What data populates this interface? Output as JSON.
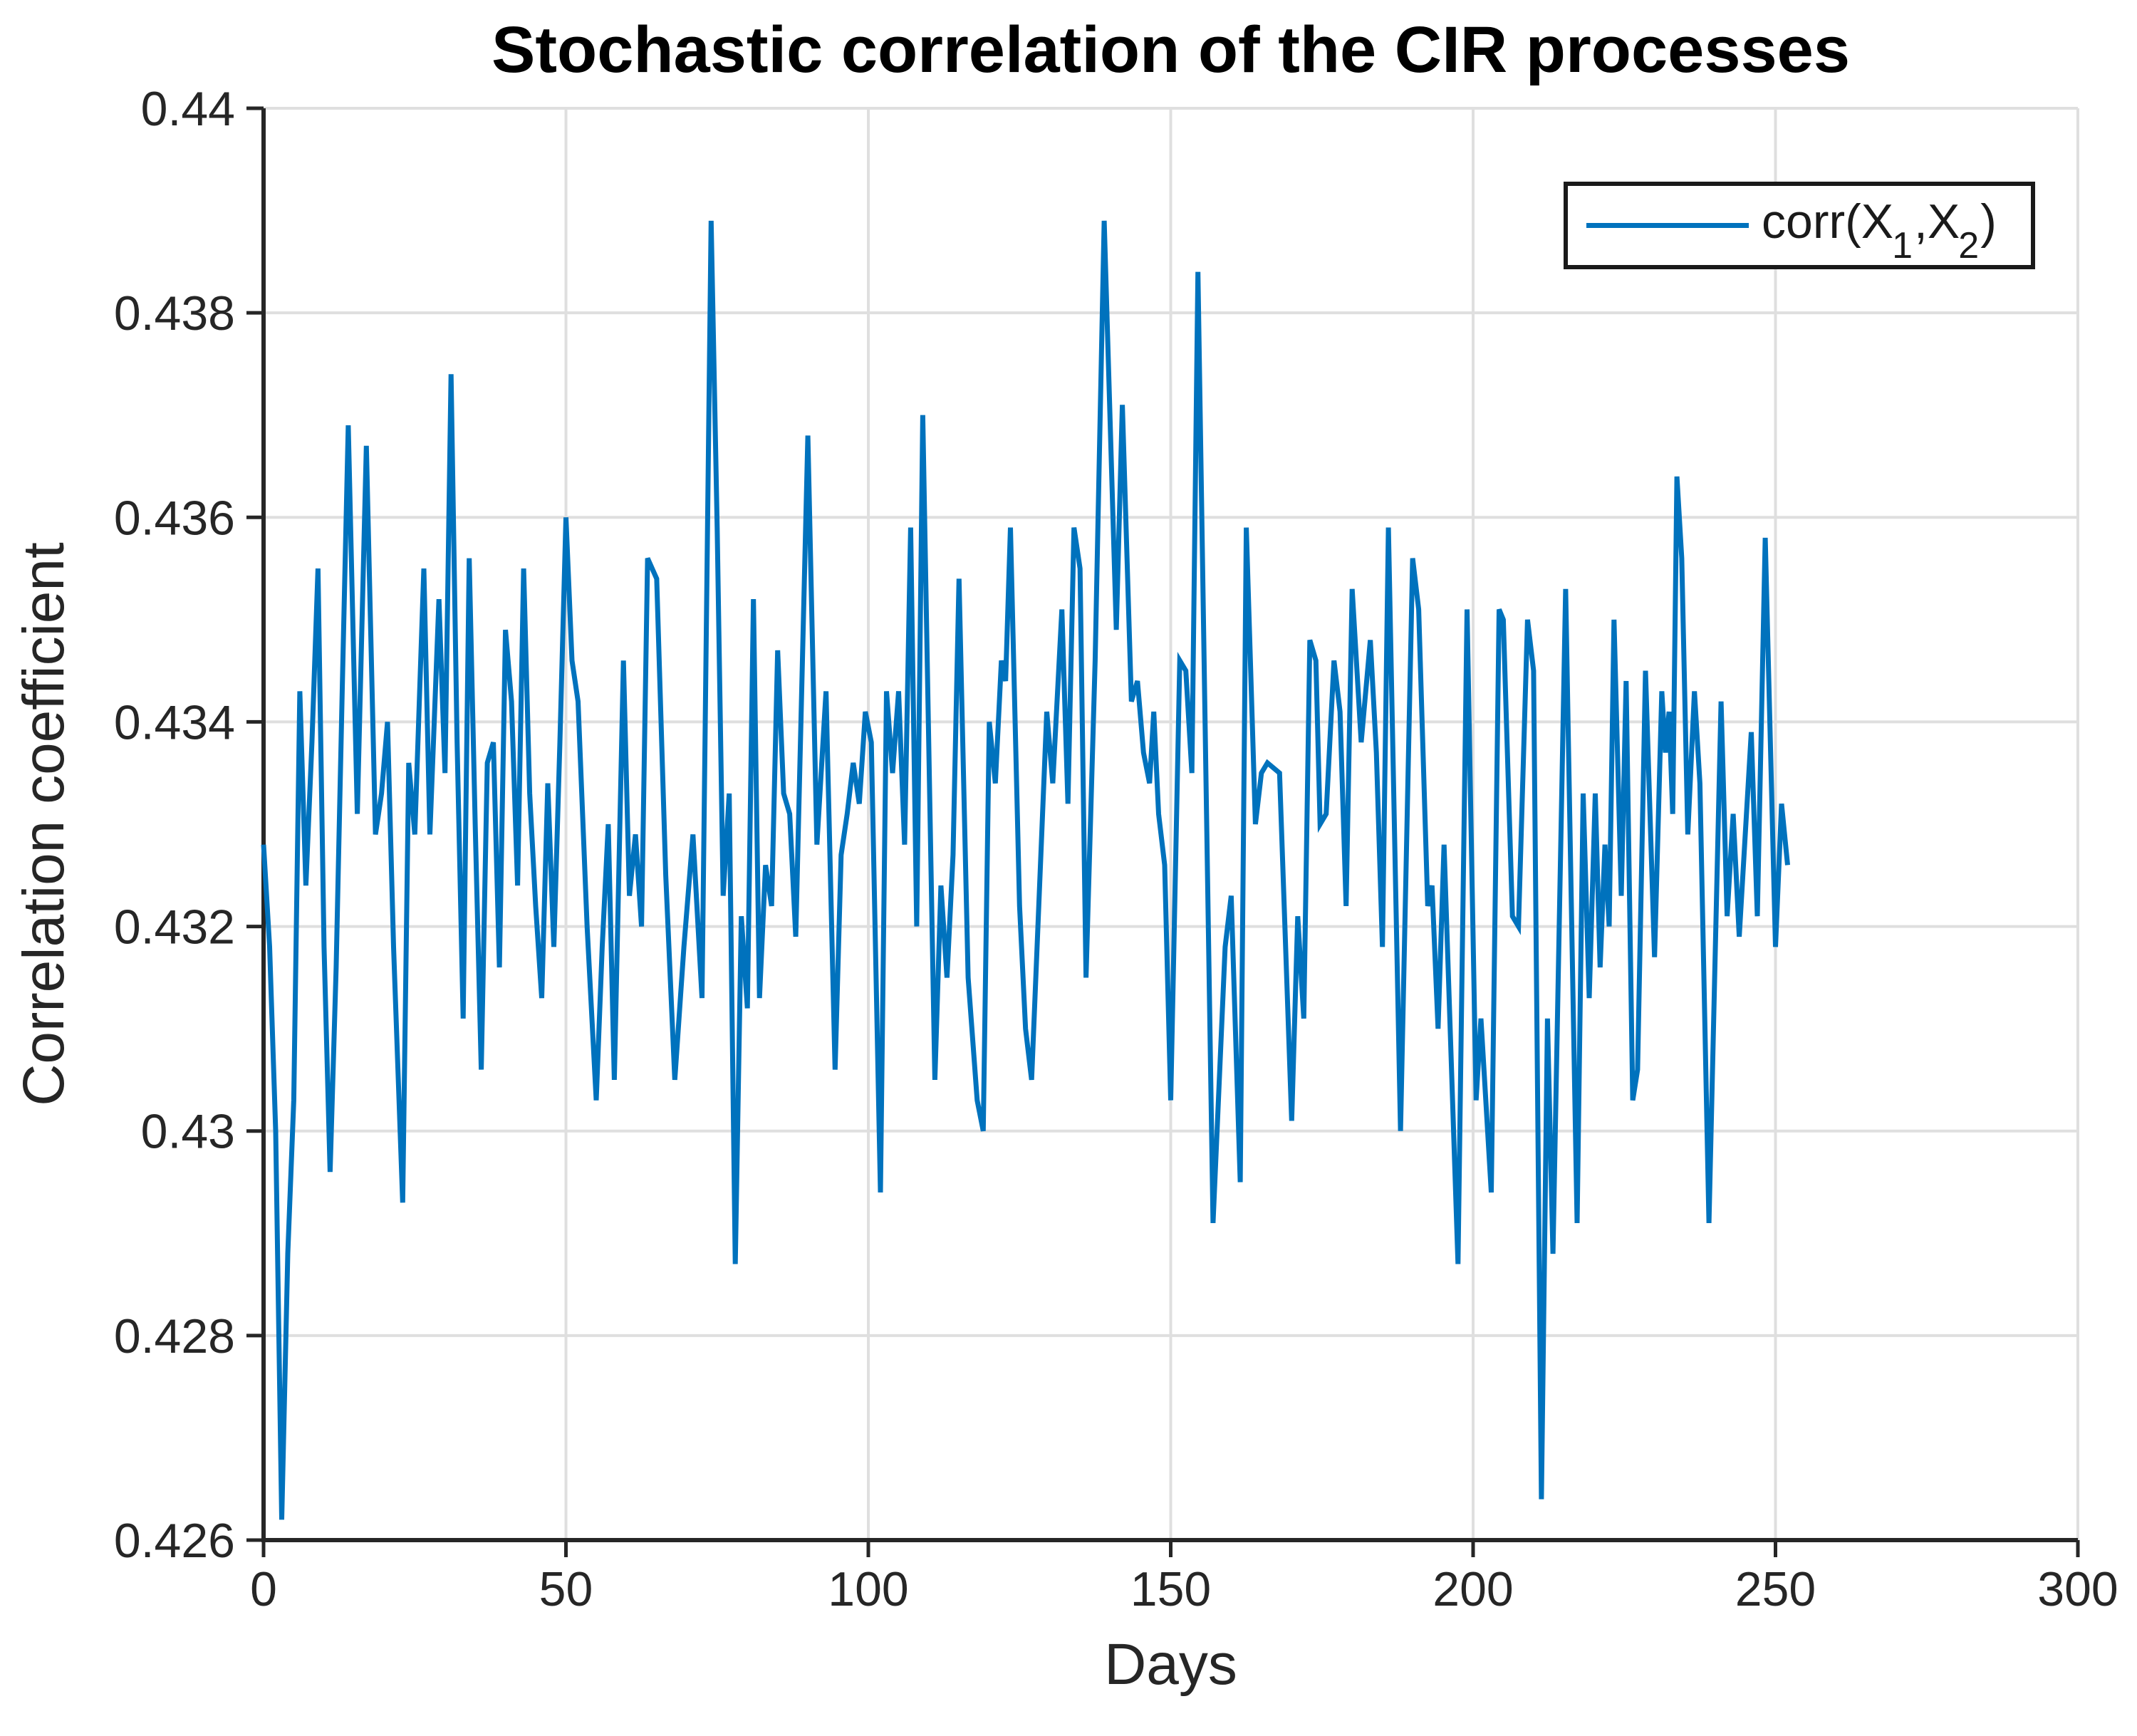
{
  "title": "Stochastic correlation of the CIR processes",
  "axes": {
    "xlabel": "Days",
    "ylabel": "Correlation coefficient",
    "x_tick_labels": [
      "0",
      "50",
      "100",
      "150",
      "200",
      "250",
      "300"
    ],
    "y_tick_labels": [
      "0.426",
      "0.428",
      "0.43",
      "0.432",
      "0.434",
      "0.436",
      "0.438",
      "0.44"
    ]
  },
  "legend": {
    "label": "corr(X_1,X_2)",
    "parts": {
      "p1": "corr(X",
      "s1": "1",
      "p2": ",X",
      "s2": "2",
      "p3": ")"
    }
  },
  "colors": {
    "line": "#0072BD",
    "grid": "#DFDFDF",
    "axis": "#262626",
    "title": "#000000",
    "background": "#FFFFFF"
  },
  "chart_data": {
    "type": "line",
    "title": "Stochastic correlation of the CIR processes",
    "xlabel": "Days",
    "ylabel": "Correlation coefficient",
    "xlim": [
      0,
      300
    ],
    "ylim": [
      0.426,
      0.44
    ],
    "x_ticks": [
      0,
      50,
      100,
      150,
      200,
      250,
      300
    ],
    "y_ticks": [
      0.426,
      0.428,
      0.43,
      0.432,
      0.434,
      0.436,
      0.438,
      0.44
    ],
    "grid": true,
    "legend_position": "top-right",
    "series": [
      {
        "name": "corr(X_1,X_2)",
        "color": "#0072BD",
        "points": [
          [
            0,
            0.4328
          ],
          [
            1,
            0.4318
          ],
          [
            2,
            0.43
          ],
          [
            3,
            0.4262
          ],
          [
            4,
            0.4288
          ],
          [
            5,
            0.4303
          ],
          [
            6,
            0.4343
          ],
          [
            7,
            0.4324
          ],
          [
            8,
            0.4338
          ],
          [
            9,
            0.4355
          ],
          [
            10,
            0.4318
          ],
          [
            11,
            0.4296
          ],
          [
            12,
            0.4316
          ],
          [
            13,
            0.4343
          ],
          [
            14,
            0.4369
          ],
          [
            15.5,
            0.4331
          ],
          [
            17,
            0.4367
          ],
          [
            18.5,
            0.4329
          ],
          [
            19.5,
            0.4333
          ],
          [
            20.5,
            0.434
          ],
          [
            21.5,
            0.4318
          ],
          [
            23,
            0.4293
          ],
          [
            24,
            0.4336
          ],
          [
            25,
            0.4329
          ],
          [
            26.5,
            0.4355
          ],
          [
            27.5,
            0.4329
          ],
          [
            29,
            0.4352
          ],
          [
            30,
            0.4335
          ],
          [
            31,
            0.4374
          ],
          [
            32,
            0.4338
          ],
          [
            33,
            0.4311
          ],
          [
            34,
            0.4356
          ],
          [
            35,
            0.433
          ],
          [
            36,
            0.4306
          ],
          [
            37,
            0.4336
          ],
          [
            38,
            0.4338
          ],
          [
            39,
            0.4316
          ],
          [
            40,
            0.4349
          ],
          [
            41,
            0.4342
          ],
          [
            42,
            0.4324
          ],
          [
            43,
            0.4355
          ],
          [
            44,
            0.4333
          ],
          [
            45,
            0.4322
          ],
          [
            46,
            0.4313
          ],
          [
            47,
            0.4334
          ],
          [
            48,
            0.4318
          ],
          [
            49,
            0.4338
          ],
          [
            50,
            0.436
          ],
          [
            51,
            0.4346
          ],
          [
            52,
            0.4342
          ],
          [
            53.5,
            0.432
          ],
          [
            55,
            0.4303
          ],
          [
            56,
            0.4318
          ],
          [
            57,
            0.433
          ],
          [
            58,
            0.4305
          ],
          [
            59.5,
            0.4346
          ],
          [
            60.5,
            0.4323
          ],
          [
            61.5,
            0.4329
          ],
          [
            62.5,
            0.432
          ],
          [
            63.5,
            0.4356
          ],
          [
            65,
            0.4354
          ],
          [
            66.5,
            0.4325
          ],
          [
            68,
            0.4305
          ],
          [
            69.5,
            0.4318
          ],
          [
            71,
            0.4329
          ],
          [
            72.5,
            0.4313
          ],
          [
            74,
            0.4389
          ],
          [
            75,
            0.4359
          ],
          [
            76,
            0.4323
          ],
          [
            77,
            0.4333
          ],
          [
            78,
            0.4287
          ],
          [
            79,
            0.4321
          ],
          [
            80,
            0.4312
          ],
          [
            81,
            0.4352
          ],
          [
            82,
            0.4313
          ],
          [
            83,
            0.4326
          ],
          [
            84,
            0.4322
          ],
          [
            85,
            0.4347
          ],
          [
            86,
            0.4333
          ],
          [
            87,
            0.4331
          ],
          [
            88,
            0.4319
          ],
          [
            90,
            0.4368
          ],
          [
            91.5,
            0.4328
          ],
          [
            93,
            0.4343
          ],
          [
            94.5,
            0.4306
          ],
          [
            95.5,
            0.4327
          ],
          [
            96.5,
            0.4331
          ],
          [
            97.5,
            0.4336
          ],
          [
            98.5,
            0.4332
          ],
          [
            99.5,
            0.4341
          ],
          [
            100.5,
            0.4338
          ],
          [
            102,
            0.4294
          ],
          [
            103,
            0.4343
          ],
          [
            104,
            0.4335
          ],
          [
            105,
            0.4343
          ],
          [
            106,
            0.4328
          ],
          [
            107,
            0.4359
          ],
          [
            108,
            0.432
          ],
          [
            109,
            0.437
          ],
          [
            111,
            0.4305
          ],
          [
            112,
            0.4324
          ],
          [
            113,
            0.4315
          ],
          [
            114,
            0.4327
          ],
          [
            115,
            0.4354
          ],
          [
            116.5,
            0.4315
          ],
          [
            118,
            0.4303
          ],
          [
            119,
            0.43
          ],
          [
            120,
            0.434
          ],
          [
            121,
            0.4334
          ],
          [
            122,
            0.4346
          ],
          [
            122.7,
            0.4344
          ],
          [
            123.5,
            0.4359
          ],
          [
            125,
            0.4322
          ],
          [
            126,
            0.431
          ],
          [
            127,
            0.4305
          ],
          [
            129.5,
            0.4341
          ],
          [
            130.5,
            0.4334
          ],
          [
            132,
            0.4351
          ],
          [
            133,
            0.4332
          ],
          [
            134,
            0.4359
          ],
          [
            135,
            0.4355
          ],
          [
            136,
            0.4315
          ],
          [
            137.5,
            0.4346
          ],
          [
            139,
            0.4389
          ],
          [
            141,
            0.4349
          ],
          [
            142,
            0.4371
          ],
          [
            143.5,
            0.4342
          ],
          [
            144.5,
            0.4344
          ],
          [
            145.5,
            0.4337
          ],
          [
            146.5,
            0.4334
          ],
          [
            147.2,
            0.4341
          ],
          [
            148,
            0.4331
          ],
          [
            149,
            0.4326
          ],
          [
            150,
            0.4303
          ],
          [
            151.5,
            0.4346
          ],
          [
            152.5,
            0.4345
          ],
          [
            153.5,
            0.4335
          ],
          [
            154.5,
            0.4384
          ],
          [
            157,
            0.4291
          ],
          [
            159,
            0.4318
          ],
          [
            160,
            0.4323
          ],
          [
            161.5,
            0.4295
          ],
          [
            162.5,
            0.4359
          ],
          [
            164,
            0.433
          ],
          [
            165,
            0.4335
          ],
          [
            166,
            0.4336
          ],
          [
            168,
            0.4335
          ],
          [
            170,
            0.4301
          ],
          [
            171,
            0.4321
          ],
          [
            172,
            0.4311
          ],
          [
            173,
            0.4348
          ],
          [
            174,
            0.4346
          ],
          [
            174.7,
            0.433
          ],
          [
            175.7,
            0.4331
          ],
          [
            177,
            0.4346
          ],
          [
            178,
            0.4341
          ],
          [
            179,
            0.4322
          ],
          [
            180,
            0.4353
          ],
          [
            181.5,
            0.4338
          ],
          [
            183,
            0.4348
          ],
          [
            184,
            0.4337
          ],
          [
            185,
            0.4318
          ],
          [
            186,
            0.4359
          ],
          [
            188,
            0.43
          ],
          [
            190,
            0.4356
          ],
          [
            191,
            0.4351
          ],
          [
            192.5,
            0.4322
          ],
          [
            193.2,
            0.4324
          ],
          [
            194.2,
            0.431
          ],
          [
            195.2,
            0.4328
          ],
          [
            197.5,
            0.4287
          ],
          [
            199,
            0.4351
          ],
          [
            200.5,
            0.4303
          ],
          [
            201.3,
            0.4311
          ],
          [
            203,
            0.4294
          ],
          [
            204.3,
            0.4351
          ],
          [
            205,
            0.435
          ],
          [
            206.5,
            0.4321
          ],
          [
            207.5,
            0.432
          ],
          [
            209,
            0.435
          ],
          [
            210,
            0.4345
          ],
          [
            211.3,
            0.4264
          ],
          [
            212.3,
            0.4311
          ],
          [
            213.2,
            0.4288
          ],
          [
            215.3,
            0.4353
          ],
          [
            217.2,
            0.4291
          ],
          [
            218.2,
            0.4333
          ],
          [
            219.2,
            0.4313
          ],
          [
            220.2,
            0.4333
          ],
          [
            221,
            0.4316
          ],
          [
            221.8,
            0.4328
          ],
          [
            222.5,
            0.432
          ],
          [
            223.3,
            0.435
          ],
          [
            224.5,
            0.4323
          ],
          [
            225.3,
            0.4344
          ],
          [
            226.4,
            0.4303
          ],
          [
            227.2,
            0.4306
          ],
          [
            228.5,
            0.4345
          ],
          [
            230,
            0.4317
          ],
          [
            231.2,
            0.4343
          ],
          [
            231.8,
            0.4337
          ],
          [
            232.4,
            0.4341
          ],
          [
            233,
            0.4331
          ],
          [
            233.7,
            0.4364
          ],
          [
            234.5,
            0.4356
          ],
          [
            235.5,
            0.4329
          ],
          [
            236.6,
            0.4343
          ],
          [
            237.5,
            0.4334
          ],
          [
            239,
            0.4291
          ],
          [
            241,
            0.4342
          ],
          [
            242,
            0.4321
          ],
          [
            243,
            0.4331
          ],
          [
            244,
            0.4319
          ],
          [
            246,
            0.4339
          ],
          [
            247,
            0.4321
          ],
          [
            248.3,
            0.4358
          ],
          [
            250,
            0.4318
          ],
          [
            251,
            0.4332
          ],
          [
            252,
            0.4326
          ]
        ]
      }
    ]
  }
}
